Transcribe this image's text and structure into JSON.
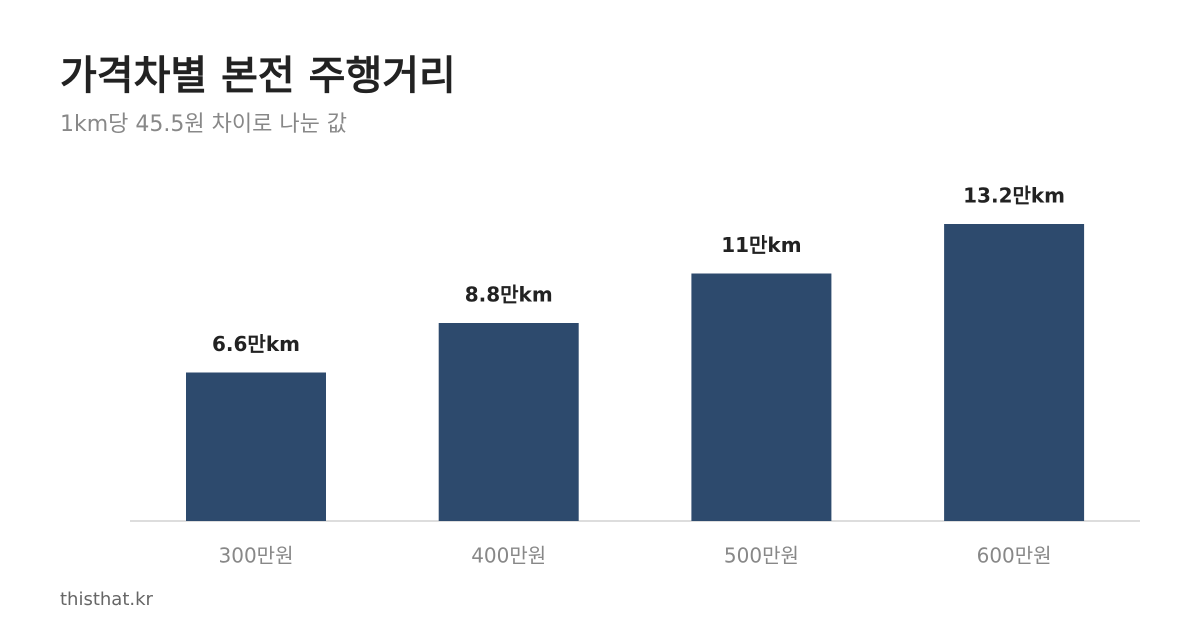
{
  "chart_data": {
    "type": "bar",
    "title": "가격차별 본전 주행거리",
    "subtitle": "1km당 45.5원 차이로 나눈 값",
    "categories": [
      "300만원",
      "400만원",
      "500만원",
      "600만원"
    ],
    "values": [
      6.6,
      8.8,
      11,
      13.2
    ],
    "value_labels": [
      "6.6만km",
      "8.8만km",
      "11만km",
      "13.2만km"
    ],
    "color": "#2d4a6d"
  },
  "footer": "thisthat.kr"
}
